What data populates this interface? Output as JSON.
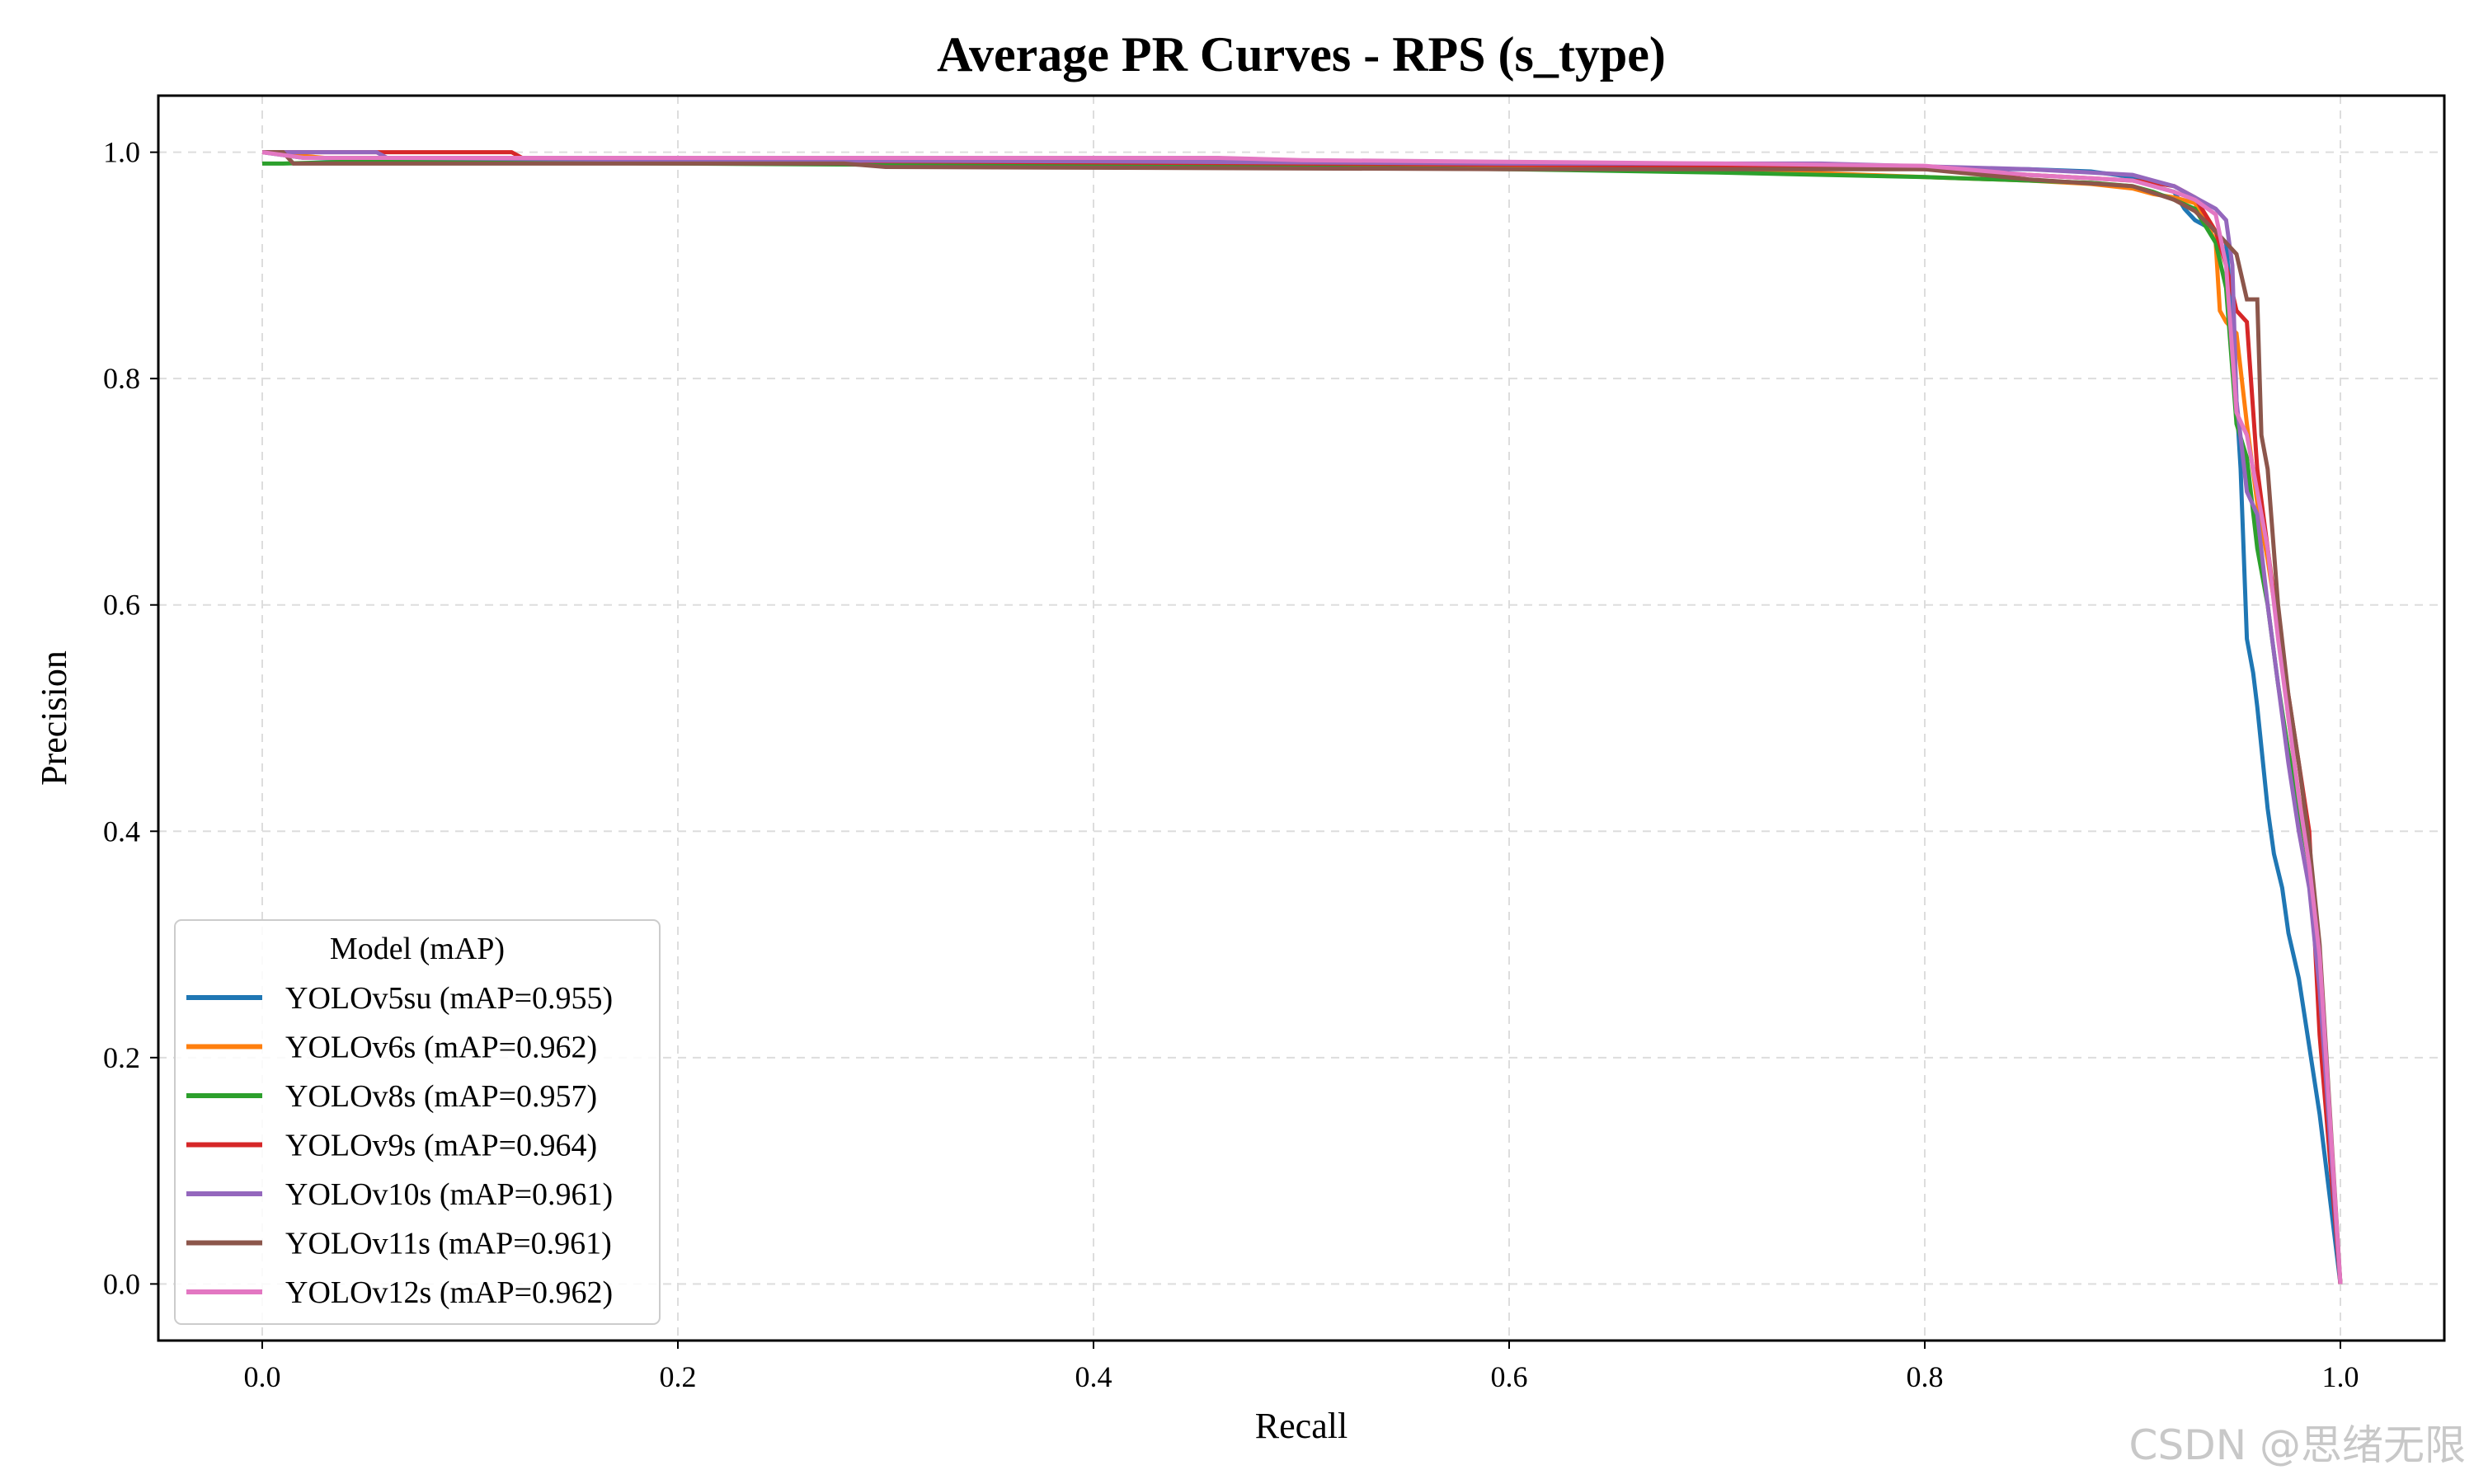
{
  "chart_data": {
    "type": "line",
    "title": "Average PR Curves - RPS (s_type)",
    "xlabel": "Recall",
    "ylabel": "Precision",
    "xlim": [
      -0.05,
      1.05
    ],
    "ylim": [
      -0.05,
      1.05
    ],
    "x_ticks": [
      0.0,
      0.2,
      0.4,
      0.6,
      0.8,
      1.0
    ],
    "x_tick_labels": [
      "0.0",
      "0.2",
      "0.4",
      "0.6",
      "0.8",
      "1.0"
    ],
    "y_ticks": [
      0.0,
      0.2,
      0.4,
      0.6,
      0.8,
      1.0
    ],
    "y_tick_labels": [
      "0.0",
      "0.2",
      "0.4",
      "0.6",
      "0.8",
      "1.0"
    ],
    "grid": true,
    "legend": {
      "title": "Model (mAP)",
      "location": "lower-left"
    },
    "series": [
      {
        "name": "YOLOv5su (mAP=0.955)",
        "color": "#1f77b4",
        "x": [
          0.0,
          0.02,
          0.1,
          0.3,
          0.5,
          0.7,
          0.85,
          0.88,
          0.9,
          0.91,
          0.92,
          0.925,
          0.93,
          0.935,
          0.94,
          0.945,
          0.948,
          0.95,
          0.952,
          0.955,
          0.958,
          0.96,
          0.965,
          0.968,
          0.972,
          0.975,
          0.98,
          0.99,
          1.0
        ],
        "y": [
          1.0,
          0.995,
          0.993,
          0.991,
          0.99,
          0.988,
          0.985,
          0.983,
          0.978,
          0.97,
          0.965,
          0.95,
          0.94,
          0.935,
          0.93,
          0.92,
          0.85,
          0.78,
          0.72,
          0.57,
          0.54,
          0.51,
          0.42,
          0.38,
          0.35,
          0.31,
          0.27,
          0.15,
          0.0
        ]
      },
      {
        "name": "YOLOv6s (mAP=0.962)",
        "color": "#ff7f0e",
        "x": [
          0.0,
          0.03,
          0.1,
          0.3,
          0.5,
          0.7,
          0.8,
          0.85,
          0.88,
          0.9,
          0.91,
          0.92,
          0.93,
          0.935,
          0.94,
          0.942,
          0.945,
          0.95,
          0.955,
          0.96,
          0.965,
          0.97,
          0.975,
          0.98,
          0.985,
          0.99,
          0.995,
          1.0
        ],
        "y": [
          1.0,
          0.995,
          0.993,
          0.99,
          0.988,
          0.985,
          0.978,
          0.975,
          0.972,
          0.968,
          0.963,
          0.96,
          0.955,
          0.94,
          0.92,
          0.86,
          0.85,
          0.84,
          0.76,
          0.69,
          0.64,
          0.58,
          0.5,
          0.43,
          0.38,
          0.27,
          0.12,
          0.0
        ]
      },
      {
        "name": "YOLOv8s (mAP=0.957)",
        "color": "#2ca02c",
        "x": [
          0.0,
          0.01,
          0.05,
          0.2,
          0.4,
          0.6,
          0.7,
          0.8,
          0.85,
          0.88,
          0.9,
          0.91,
          0.92,
          0.93,
          0.94,
          0.945,
          0.95,
          0.955,
          0.96,
          0.965,
          0.97,
          0.975,
          0.98,
          0.985,
          0.99,
          1.0
        ],
        "y": [
          0.99,
          0.99,
          0.992,
          0.99,
          0.988,
          0.985,
          0.982,
          0.978,
          0.975,
          0.973,
          0.97,
          0.965,
          0.958,
          0.95,
          0.92,
          0.88,
          0.76,
          0.73,
          0.65,
          0.6,
          0.53,
          0.47,
          0.42,
          0.37,
          0.25,
          0.0
        ]
      },
      {
        "name": "YOLOv9s (mAP=0.964)",
        "color": "#d62728",
        "x": [
          0.0,
          0.05,
          0.055,
          0.12,
          0.125,
          0.3,
          0.5,
          0.7,
          0.8,
          0.85,
          0.88,
          0.9,
          0.91,
          0.92,
          0.93,
          0.94,
          0.945,
          0.95,
          0.955,
          0.96,
          0.965,
          0.97,
          0.975,
          0.98,
          0.985,
          0.99,
          1.0
        ],
        "y": [
          1.0,
          1.0,
          1.0,
          1.0,
          0.995,
          0.992,
          0.99,
          0.988,
          0.985,
          0.98,
          0.977,
          0.975,
          0.973,
          0.97,
          0.96,
          0.93,
          0.9,
          0.86,
          0.85,
          0.72,
          0.65,
          0.58,
          0.52,
          0.46,
          0.4,
          0.22,
          0.0
        ]
      },
      {
        "name": "YOLOv10s (mAP=0.961)",
        "color": "#9467bd",
        "x": [
          0.0,
          0.02,
          0.055,
          0.06,
          0.2,
          0.4,
          0.6,
          0.75,
          0.85,
          0.9,
          0.91,
          0.92,
          0.93,
          0.94,
          0.945,
          0.948,
          0.95,
          0.955,
          0.96,
          0.965,
          0.97,
          0.975,
          0.98,
          0.985,
          0.99,
          1.0
        ],
        "y": [
          1.0,
          1.0,
          1.0,
          0.995,
          0.993,
          0.992,
          0.99,
          0.99,
          0.985,
          0.98,
          0.975,
          0.97,
          0.96,
          0.95,
          0.94,
          0.9,
          0.78,
          0.7,
          0.68,
          0.6,
          0.53,
          0.46,
          0.4,
          0.35,
          0.26,
          0.0
        ]
      },
      {
        "name": "YOLOv11s (mAP=0.961)",
        "color": "#8c564b",
        "x": [
          0.0,
          0.01,
          0.015,
          0.1,
          0.28,
          0.3,
          0.6,
          0.7,
          0.8,
          0.85,
          0.9,
          0.92,
          0.93,
          0.94,
          0.945,
          0.95,
          0.955,
          0.96,
          0.962,
          0.965,
          0.97,
          0.975,
          0.98,
          0.985,
          0.99,
          1.0
        ],
        "y": [
          1.0,
          1.0,
          0.99,
          0.99,
          0.99,
          0.987,
          0.985,
          0.985,
          0.985,
          0.976,
          0.97,
          0.958,
          0.948,
          0.93,
          0.92,
          0.91,
          0.87,
          0.87,
          0.75,
          0.72,
          0.6,
          0.52,
          0.46,
          0.39,
          0.3,
          0.0
        ]
      },
      {
        "name": "YOLOv12s (mAP=0.962)",
        "color": "#e377c2",
        "x": [
          0.0,
          0.02,
          0.1,
          0.3,
          0.46,
          0.5,
          0.7,
          0.8,
          0.85,
          0.9,
          0.91,
          0.92,
          0.93,
          0.94,
          0.945,
          0.95,
          0.955,
          0.96,
          0.965,
          0.97,
          0.975,
          0.98,
          0.985,
          0.99,
          1.0
        ],
        "y": [
          1.0,
          0.995,
          0.995,
          0.995,
          0.995,
          0.993,
          0.99,
          0.988,
          0.98,
          0.975,
          0.97,
          0.965,
          0.958,
          0.945,
          0.9,
          0.77,
          0.75,
          0.7,
          0.65,
          0.57,
          0.5,
          0.43,
          0.37,
          0.29,
          0.0
        ]
      }
    ]
  },
  "watermark": "CSDN @思绪无限"
}
